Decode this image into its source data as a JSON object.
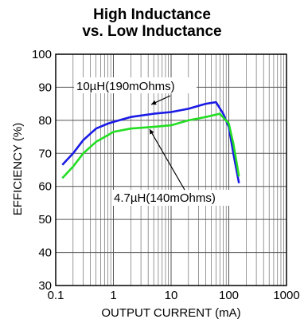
{
  "chart_data": {
    "type": "line",
    "title": "High Inductance",
    "subtitle": "vs. Low Inductance",
    "xlabel": "OUTPUT CURRENT (mA)",
    "ylabel": "EFFICIENCY (%)",
    "xscale": "log",
    "xlim": [
      0.1,
      1000
    ],
    "ylim": [
      30,
      100
    ],
    "x_ticks": [
      0.1,
      1,
      10,
      100,
      1000
    ],
    "x_tick_labels": [
      "0.1",
      "1",
      "10",
      "100",
      "1000"
    ],
    "y_ticks": [
      30,
      40,
      50,
      60,
      70,
      80,
      90,
      100
    ],
    "y_tick_labels": [
      "30",
      "40",
      "50",
      "60",
      "70",
      "80",
      "90",
      "100"
    ],
    "grid": true,
    "series": [
      {
        "name": "10µH(190mOhms)",
        "color": "#1a1ae6",
        "points": [
          [
            0.13,
            66.5
          ],
          [
            0.2,
            70
          ],
          [
            0.3,
            74
          ],
          [
            0.5,
            77.5
          ],
          [
            0.8,
            79
          ],
          [
            1,
            79.5
          ],
          [
            2,
            81
          ],
          [
            5,
            82
          ],
          [
            10,
            82.5
          ],
          [
            20,
            83.5
          ],
          [
            40,
            85
          ],
          [
            60,
            85.5
          ],
          [
            80,
            82
          ],
          [
            100,
            78
          ],
          [
            120,
            70
          ],
          [
            150,
            61
          ]
        ]
      },
      {
        "name": "4.7µH(140mOhms)",
        "color": "#22dd22",
        "points": [
          [
            0.13,
            62.5
          ],
          [
            0.2,
            66
          ],
          [
            0.3,
            70
          ],
          [
            0.5,
            73.5
          ],
          [
            0.8,
            75.5
          ],
          [
            1,
            76.5
          ],
          [
            2,
            77.5
          ],
          [
            5,
            78
          ],
          [
            10,
            78.5
          ],
          [
            20,
            80
          ],
          [
            40,
            81
          ],
          [
            70,
            82
          ],
          [
            100,
            79
          ],
          [
            120,
            73
          ],
          [
            150,
            63
          ]
        ]
      }
    ],
    "annotations": [
      {
        "text": "10µH(190mOhms)"
      },
      {
        "text": "4.7µH(140mOhms)"
      }
    ]
  }
}
